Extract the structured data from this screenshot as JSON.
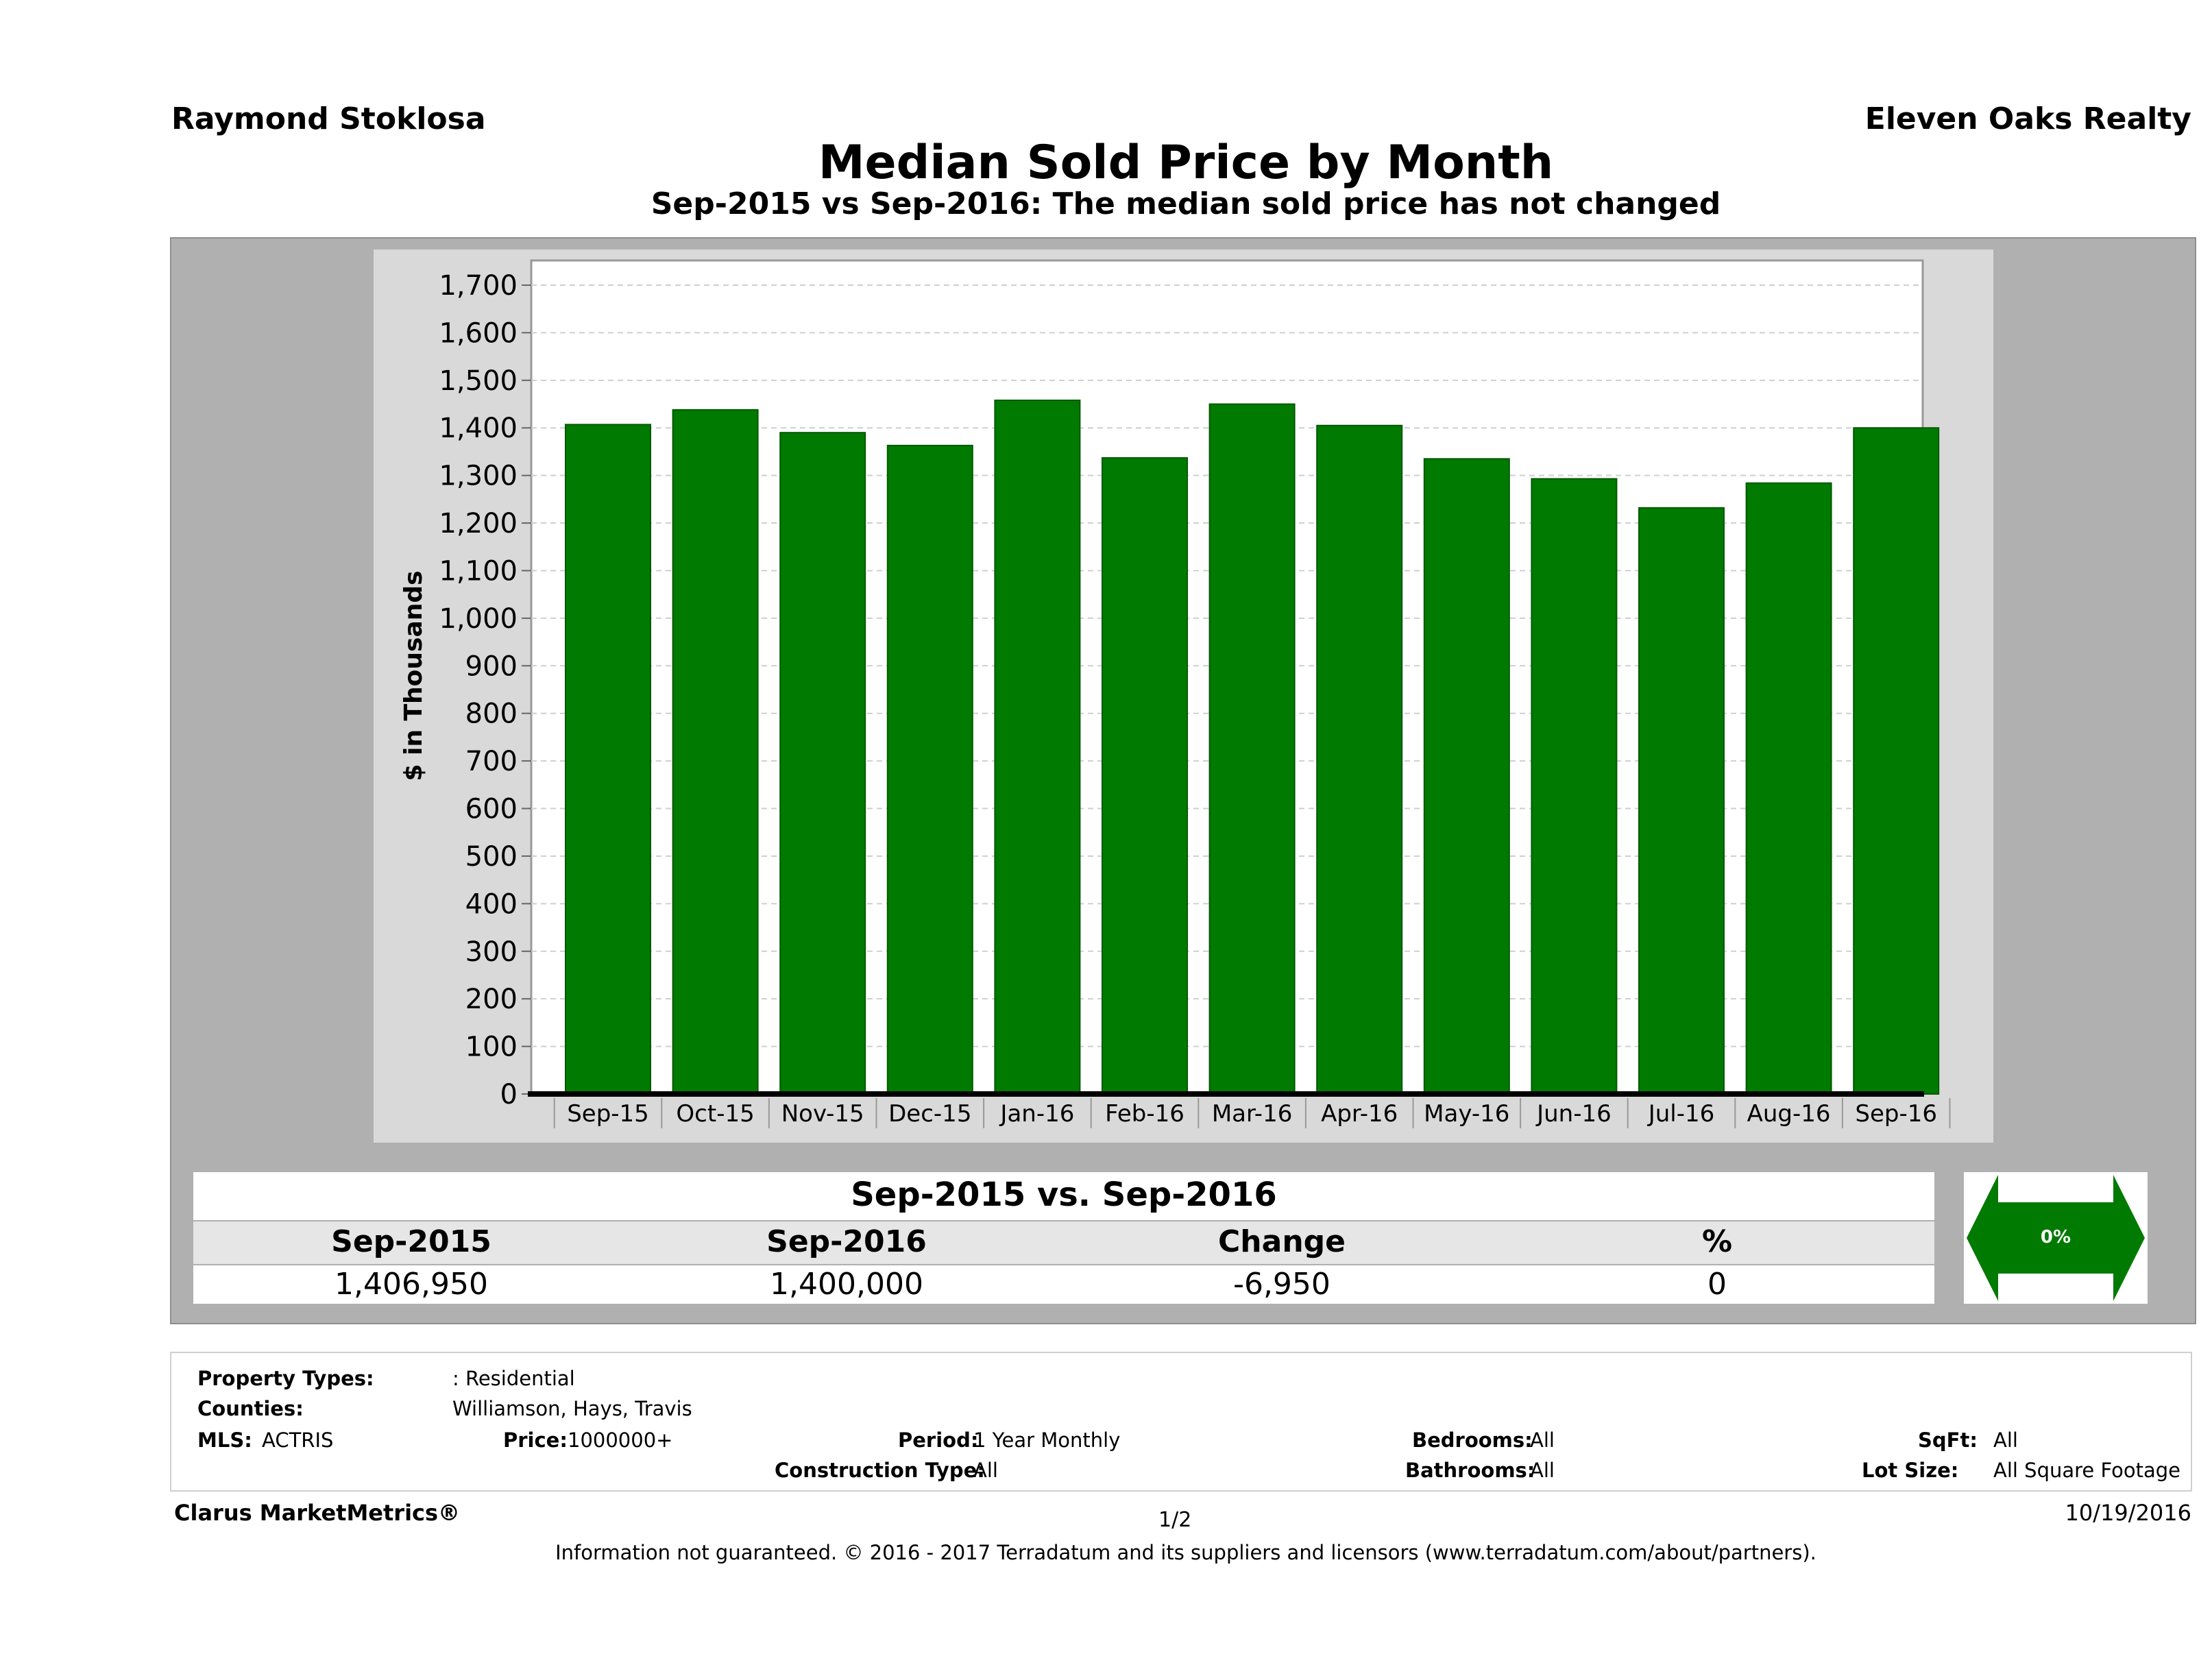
{
  "header": {
    "agent": "Raymond Stoklosa",
    "brokerage": "Eleven Oaks Realty",
    "title": "Median Sold Price by Month",
    "subtitle": "Sep-2015 vs Sep-2016: The median sold price has not changed"
  },
  "chart_data": {
    "type": "bar",
    "ylabel": "$ in Thousands",
    "ylim": [
      0,
      1700
    ],
    "yticks": [
      0,
      100,
      200,
      300,
      400,
      500,
      600,
      700,
      800,
      900,
      1000,
      1100,
      1200,
      1300,
      1400,
      1500,
      1600,
      1700
    ],
    "ytick_labels": [
      "0",
      "100",
      "200",
      "300",
      "400",
      "500",
      "600",
      "700",
      "800",
      "900",
      "1,000",
      "1,100",
      "1,200",
      "1,300",
      "1,400",
      "1,500",
      "1,600",
      "1,700"
    ],
    "categories": [
      "Sep-15",
      "Oct-15",
      "Nov-15",
      "Dec-15",
      "Jan-16",
      "Feb-16",
      "Mar-16",
      "Apr-16",
      "May-16",
      "Jun-16",
      "Jul-16",
      "Aug-16",
      "Sep-16"
    ],
    "values": [
      1407,
      1438,
      1390,
      1363,
      1458,
      1337,
      1450,
      1405,
      1335,
      1293,
      1232,
      1284,
      1400
    ],
    "bar_color": "#007a00",
    "grid": true
  },
  "summary": {
    "title": "Sep-2015 vs. Sep-2016",
    "headers": [
      "Sep-2015",
      "Sep-2016",
      "Change",
      "%"
    ],
    "values": [
      "1,406,950",
      "1,400,000",
      "-6,950",
      "0"
    ],
    "indicator": "0%",
    "indicator_color": "#007a00"
  },
  "filters": {
    "property_types_label": "Property Types:",
    "property_types_value": ": Residential",
    "counties_label": "Counties:",
    "counties_value": "Williamson, Hays, Travis",
    "mls_label": "MLS:",
    "mls_value": "ACTRIS",
    "price_label": "Price:",
    "price_value": "1000000+",
    "period_label": "Period:",
    "period_value": "1 Year Monthly",
    "construction_label": "Construction Type:",
    "construction_value": "All",
    "bedrooms_label": "Bedrooms:",
    "bedrooms_value": "All",
    "bathrooms_label": "Bathrooms:",
    "bathrooms_value": "All",
    "sqft_label": "SqFt:",
    "sqft_value": "All",
    "lotsize_label": "Lot Size:",
    "lotsize_value": "All Square Footage"
  },
  "footer": {
    "brand": "Clarus MarketMetrics®",
    "page": "1/2",
    "date": "10/19/2016",
    "note": "Information not guaranteed. © 2016 - 2017 Terradatum and its suppliers and licensors (www.terradatum.com/about/partners)."
  }
}
